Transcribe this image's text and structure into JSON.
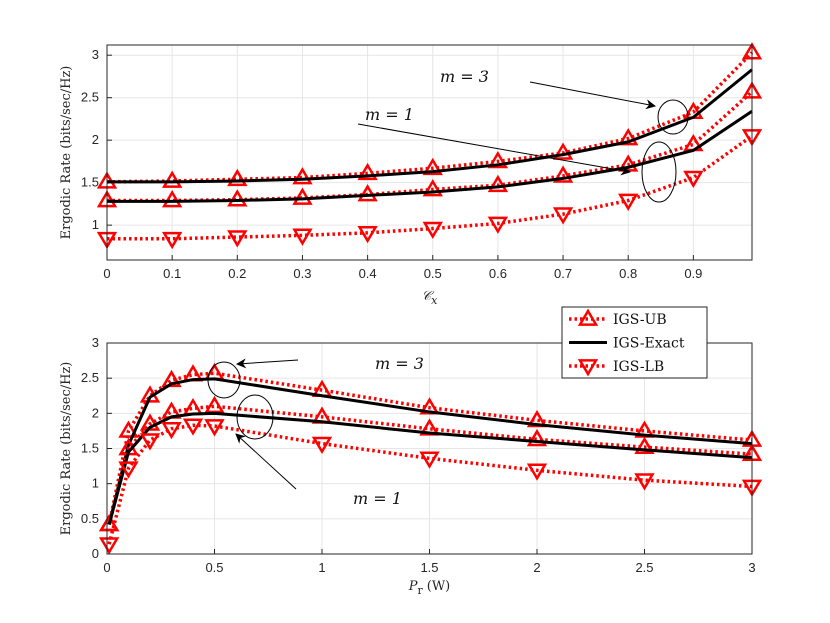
{
  "colors": {
    "bound": "#ff0000",
    "exact": "#000000",
    "grid": "#e6e6e6",
    "axis": "#262626"
  },
  "legend": {
    "items": [
      {
        "label": "IGS-UB",
        "style": "dotted",
        "marker": "triangle-up"
      },
      {
        "label": "IGS-Exact",
        "style": "solid",
        "marker": "none"
      },
      {
        "label": "IGS-LB",
        "style": "dotted",
        "marker": "triangle-down"
      }
    ]
  },
  "chart_data": [
    {
      "type": "line",
      "xlabel": "𝒞",
      "xlabel_sub": "x",
      "ylabel": "Ergodic Rate (bits/sec/Hz)",
      "xlim": [
        0,
        0.99
      ],
      "ylim": [
        0.59,
        3.12
      ],
      "xticks": [
        0,
        0.1,
        0.2,
        0.3,
        0.4,
        0.5,
        0.6,
        0.7,
        0.8,
        0.9
      ],
      "yticks": [
        1,
        1.5,
        2,
        2.5,
        3
      ],
      "grid": true,
      "x": [
        0,
        0.1,
        0.2,
        0.3,
        0.4,
        0.5,
        0.6,
        0.7,
        0.8,
        0.9,
        0.99
      ],
      "series": [
        {
          "name": "IGS-UB (m = 3)",
          "kind": "ub",
          "values": [
            1.51,
            1.52,
            1.54,
            1.56,
            1.61,
            1.67,
            1.75,
            1.85,
            2.02,
            2.33,
            3.03
          ]
        },
        {
          "name": "IGS-Exact (m = 3)",
          "kind": "exact",
          "values": [
            1.51,
            1.51,
            1.52,
            1.54,
            1.58,
            1.63,
            1.71,
            1.83,
            1.98,
            2.27,
            2.83
          ]
        },
        {
          "name": "IGS-UB (m = 1)",
          "kind": "ub",
          "values": [
            1.29,
            1.29,
            1.3,
            1.32,
            1.36,
            1.42,
            1.47,
            1.58,
            1.71,
            1.95,
            2.57
          ]
        },
        {
          "name": "IGS-Exact (m = 1)",
          "kind": "exact",
          "values": [
            1.28,
            1.28,
            1.29,
            1.31,
            1.35,
            1.39,
            1.45,
            1.55,
            1.68,
            1.88,
            2.34
          ]
        },
        {
          "name": "IGS-LB",
          "kind": "lb",
          "values": [
            0.84,
            0.84,
            0.86,
            0.88,
            0.91,
            0.96,
            1.02,
            1.13,
            1.29,
            1.56,
            2.05
          ]
        }
      ],
      "annotations": [
        {
          "text": "m = 3"
        },
        {
          "text": "m = 1"
        }
      ]
    },
    {
      "type": "line",
      "xlabel": "P",
      "xlabel_sub": "r",
      "xlabel_unit": "(W)",
      "ylabel": "Ergodic Rate (bits/sec/Hz)",
      "xlim": [
        0,
        3
      ],
      "ylim": [
        0,
        3
      ],
      "xticks": [
        0,
        0.5,
        1,
        1.5,
        2,
        2.5,
        3
      ],
      "yticks": [
        0,
        0.5,
        1,
        1.5,
        2,
        2.5,
        3
      ],
      "grid": true,
      "x": [
        0.01,
        0.1,
        0.2,
        0.3,
        0.4,
        0.5,
        1,
        1.5,
        2,
        2.5,
        3
      ],
      "series": [
        {
          "name": "IGS-UB (m = 3)",
          "kind": "ub",
          "values": [
            0.42,
            1.75,
            2.25,
            2.47,
            2.55,
            2.57,
            2.33,
            2.08,
            1.9,
            1.75,
            1.62
          ]
        },
        {
          "name": "IGS-Exact (m = 3)",
          "kind": "exact",
          "values": [
            0.42,
            1.55,
            2.23,
            2.42,
            2.48,
            2.49,
            2.25,
            2.02,
            1.84,
            1.69,
            1.57
          ]
        },
        {
          "name": "IGS-UB (m = 1)",
          "kind": "ub",
          "values": [
            0.42,
            1.5,
            1.85,
            2.02,
            2.07,
            2.1,
            1.95,
            1.78,
            1.63,
            1.52,
            1.42
          ]
        },
        {
          "name": "IGS-Exact (m = 1)",
          "kind": "exact",
          "values": [
            0.42,
            1.45,
            1.8,
            1.95,
            1.99,
            2.0,
            1.88,
            1.72,
            1.6,
            1.48,
            1.37
          ]
        },
        {
          "name": "IGS-LB",
          "kind": "lb",
          "values": [
            0.14,
            1.22,
            1.62,
            1.78,
            1.83,
            1.82,
            1.57,
            1.36,
            1.19,
            1.05,
            0.96
          ]
        }
      ],
      "annotations": [
        {
          "text": "m = 3"
        },
        {
          "text": "m = 1"
        }
      ]
    }
  ]
}
